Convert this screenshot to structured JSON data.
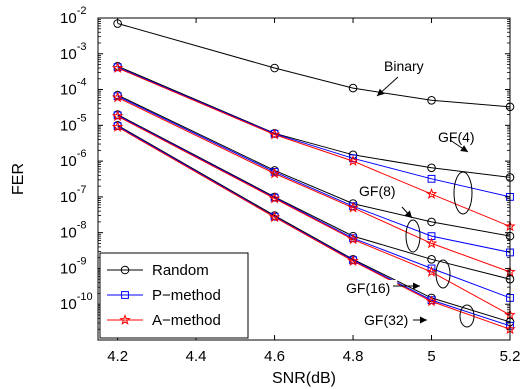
{
  "chart_data": {
    "type": "line",
    "xlabel": "SNR(dB)",
    "ylabel": "FER",
    "x": [
      4.2,
      4.6,
      4.8,
      5.0,
      5.2
    ],
    "xlim": [
      4.15,
      5.2
    ],
    "xticks": [
      "4.2",
      "4.4",
      "4.6",
      "4.8",
      "5",
      "5.2"
    ],
    "ylim": [
      1e-11,
      0.01
    ],
    "yscale": "log",
    "ytick_exponents": [
      "-10",
      "-9",
      "-8",
      "-7",
      "-6",
      "-5",
      "-4",
      "-3",
      "-2"
    ],
    "ytick_base": "10",
    "grid": false,
    "legend": {
      "position": "bottom-left",
      "entries": [
        {
          "label": "Random",
          "marker": "circle",
          "color": "#000000"
        },
        {
          "label": "P−method",
          "marker": "square",
          "color": "#0000ff"
        },
        {
          "label": "A−method",
          "marker": "star",
          "color": "#ff0000"
        }
      ]
    },
    "curves": [
      {
        "group": "Binary",
        "method": "Random",
        "values": [
          0.007,
          0.0004,
          0.00011,
          5e-05,
          3.3e-05
        ]
      },
      {
        "group": "GF(4)",
        "method": "Random",
        "values": [
          0.00045,
          6e-06,
          1.5e-06,
          6.5e-07,
          3.5e-07
        ]
      },
      {
        "group": "GF(4)",
        "method": "P−method",
        "values": [
          0.00042,
          5.8e-06,
          1.2e-06,
          3.2e-07,
          1e-07
        ]
      },
      {
        "group": "GF(4)",
        "method": "A−method",
        "values": [
          0.0004,
          5.5e-06,
          1e-06,
          1.2e-07,
          1.5e-08
        ]
      },
      {
        "group": "GF(8)",
        "method": "Random",
        "values": [
          7e-05,
          5.5e-07,
          6.5e-08,
          2e-08,
          8e-09
        ]
      },
      {
        "group": "GF(8)",
        "method": "P−method",
        "values": [
          6.5e-05,
          5e-07,
          5.5e-08,
          8e-09,
          2.8e-09
        ]
      },
      {
        "group": "GF(8)",
        "method": "A−method",
        "values": [
          6e-05,
          4.5e-07,
          5e-08,
          5e-09,
          8e-10
        ]
      },
      {
        "group": "GF(16)",
        "method": "Random",
        "values": [
          2e-05,
          1e-07,
          8e-09,
          1.8e-09,
          5e-10
        ]
      },
      {
        "group": "GF(16)",
        "method": "P−method",
        "values": [
          1.9e-05,
          9.5e-08,
          7e-09,
          1e-09,
          1.5e-10
        ]
      },
      {
        "group": "GF(16)",
        "method": "A−method",
        "values": [
          1.8e-05,
          9e-08,
          6.5e-09,
          8e-10,
          5e-11
        ]
      },
      {
        "group": "GF(32)",
        "method": "Random",
        "values": [
          1e-05,
          3e-08,
          1.8e-09,
          1.5e-10,
          3.2e-11
        ]
      },
      {
        "group": "GF(32)",
        "method": "P−method",
        "values": [
          9.5e-06,
          2.8e-08,
          1.7e-09,
          1.3e-10,
          2.5e-11
        ]
      },
      {
        "group": "GF(32)",
        "method": "A−method",
        "values": [
          9e-06,
          2.7e-08,
          1.6e-09,
          1.2e-10,
          2e-11
        ]
      }
    ],
    "annotations": [
      {
        "text": "Binary"
      },
      {
        "text": "GF(4)"
      },
      {
        "text": "GF(8)"
      },
      {
        "text": "GF(16)"
      },
      {
        "text": "GF(32)"
      }
    ]
  }
}
